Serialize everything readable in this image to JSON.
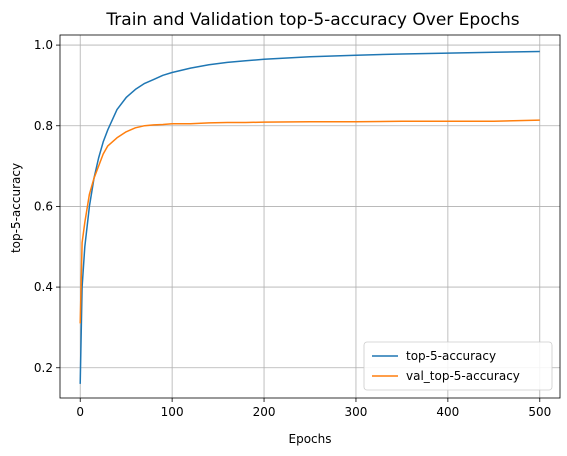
{
  "chart_data": {
    "type": "line",
    "title": "Train and Validation top-5-accuracy Over Epochs",
    "xlabel": "Epochs",
    "ylabel": "top-5-accuracy",
    "xlim": [
      -22,
      522
    ],
    "ylim": [
      0.125,
      1.025
    ],
    "xticks": [
      0,
      100,
      200,
      300,
      400,
      500
    ],
    "yticks": [
      0.2,
      0.4,
      0.6,
      0.8,
      1.0
    ],
    "ytick_labels": [
      "0.2",
      "0.4",
      "0.6",
      "0.8",
      "1.0"
    ],
    "grid": true,
    "legend_position": "lower-right",
    "series": [
      {
        "name": "top-5-accuracy",
        "color": "#1f77b4",
        "x": [
          0,
          2,
          5,
          10,
          15,
          20,
          25,
          30,
          40,
          50,
          60,
          70,
          80,
          90,
          100,
          120,
          140,
          160,
          180,
          200,
          250,
          300,
          350,
          400,
          450,
          500
        ],
        "values": [
          0.16,
          0.4,
          0.5,
          0.6,
          0.67,
          0.72,
          0.76,
          0.79,
          0.84,
          0.87,
          0.89,
          0.905,
          0.915,
          0.925,
          0.932,
          0.943,
          0.951,
          0.957,
          0.961,
          0.965,
          0.971,
          0.975,
          0.978,
          0.98,
          0.982,
          0.984
        ]
      },
      {
        "name": "val_top-5-accuracy",
        "color": "#ff7f0e",
        "x": [
          0,
          2,
          5,
          10,
          15,
          20,
          25,
          30,
          40,
          50,
          60,
          70,
          80,
          90,
          100,
          120,
          140,
          160,
          180,
          200,
          250,
          300,
          350,
          400,
          450,
          500
        ],
        "values": [
          0.31,
          0.51,
          0.56,
          0.63,
          0.67,
          0.7,
          0.73,
          0.75,
          0.77,
          0.785,
          0.795,
          0.8,
          0.802,
          0.803,
          0.805,
          0.805,
          0.807,
          0.808,
          0.808,
          0.809,
          0.81,
          0.81,
          0.811,
          0.811,
          0.811,
          0.814
        ]
      }
    ]
  }
}
